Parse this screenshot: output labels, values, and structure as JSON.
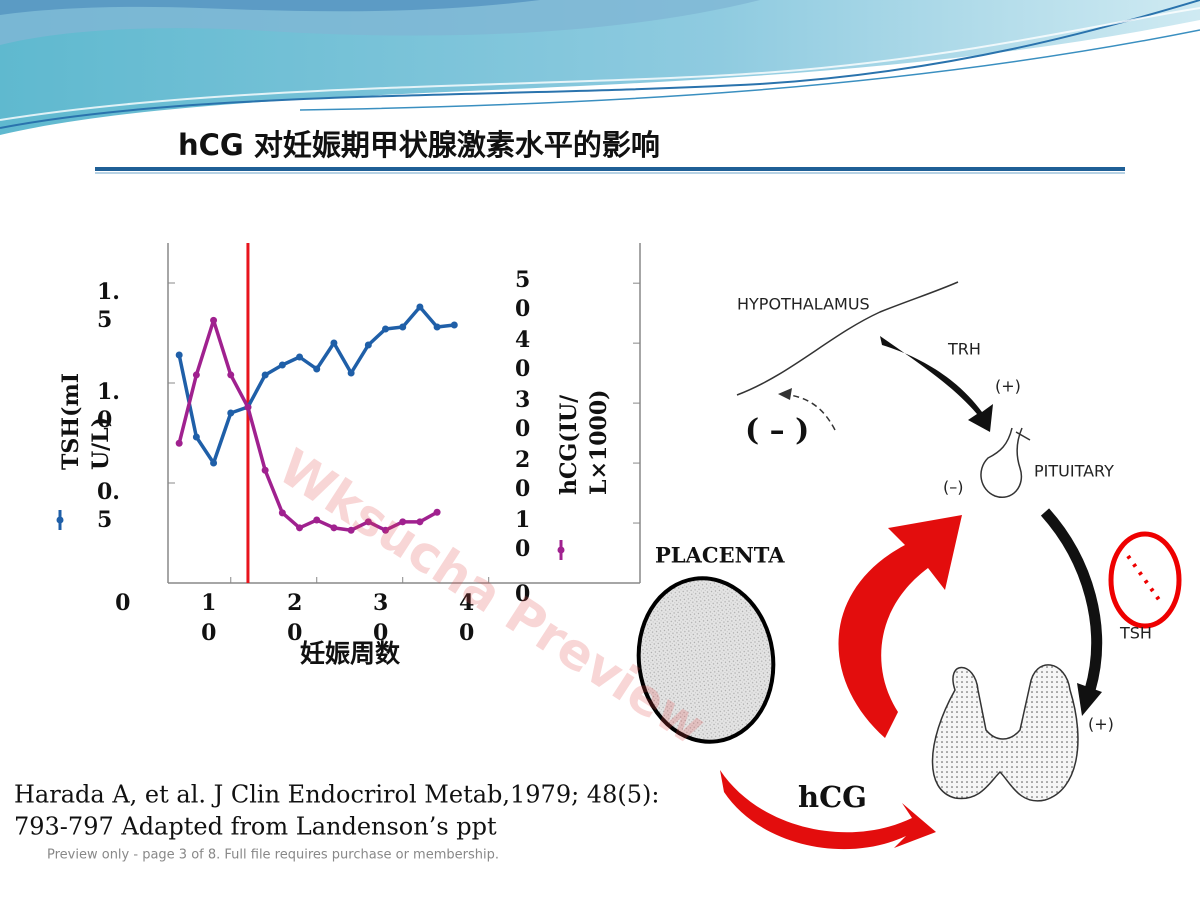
{
  "title": "hCG 对妊娠期甲状腺激素水平的影响",
  "chart_data": {
    "type": "line",
    "x_label": "妊娠周数",
    "x": [
      4,
      6,
      8,
      10,
      12,
      14,
      16,
      18,
      20,
      22,
      24,
      26,
      28,
      30,
      32,
      34,
      36
    ],
    "series": [
      {
        "name": "TSH(mIU/L)",
        "color": "#1f5fa8",
        "values": [
          1.14,
          0.73,
          0.6,
          0.85,
          0.88,
          1.04,
          1.09,
          1.13,
          1.07,
          1.2,
          1.05,
          1.19,
          1.27,
          1.28,
          1.38,
          1.28,
          1.29
        ]
      },
      {
        "name": "hCG(IU/L×1000)",
        "color": "#a0218f",
        "axis": "y2",
        "values": [
          23.3,
          34.7,
          43.8,
          34.7,
          29.3,
          18.8,
          11.7,
          9.2,
          10.5,
          9.2,
          8.8,
          10.2,
          8.8,
          10.2,
          10.2,
          11.8,
          null
        ]
      }
    ],
    "xlim": [
      2.7,
      57.6
    ],
    "xticks": [
      0,
      10,
      20,
      30,
      40
    ],
    "ylim": [
      0,
      1.7
    ],
    "yticks": [
      0.5,
      {
        "value": 1,
        "label": "1.0"
      },
      1.5
    ],
    "y2lim": [
      0,
      56.7
    ],
    "y2ticks": [
      0,
      10,
      20,
      30,
      40,
      50
    ],
    "vline": 12,
    "vline_color": "#e8141c"
  },
  "diagram": {
    "hypothalamus": "HYPOTHALAMUS",
    "trh": "TRH",
    "plus_1": "(+)",
    "minus_1": "( – )",
    "minus_2": "(–)",
    "pituitary": "PITUITARY",
    "tsh": "TSH",
    "plus_2": "(+)",
    "placenta": "PLACENTA",
    "hcg": "hCG"
  },
  "citation": [
    "Harada A, et al.  J Clin Endocrirol Metab,1979; 48(5):",
    "793-797 Adapted from Landenson’s ppt"
  ],
  "watermark": "Wksucha Preview",
  "footer": "Preview only - page 3 of 8. Full file requires purchase or membership."
}
